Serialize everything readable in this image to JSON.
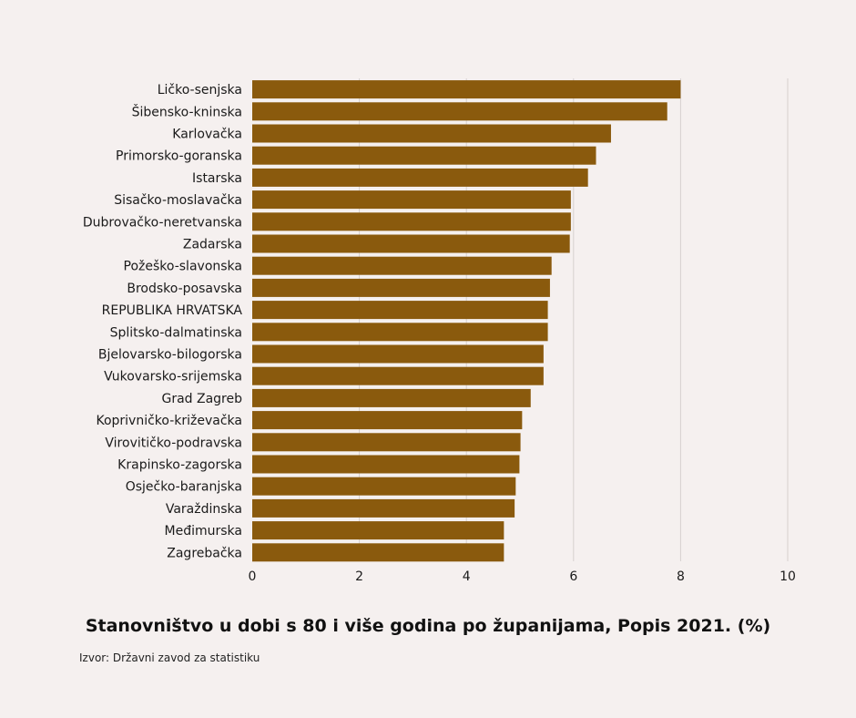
{
  "colors": {
    "background": "#f5f0ef",
    "bar": "#8a5a0d",
    "grid": "#d6d0ce"
  },
  "chart_data": {
    "type": "bar",
    "orientation": "horizontal",
    "title": "Stanovništvo u dobi s 80 i više godina po županijama, Popis 2021. (%)",
    "source": "Izvor: Državni zavod za statistiku",
    "xlabel": "",
    "ylabel": "",
    "xlim": [
      0,
      10
    ],
    "x_ticks": [
      "0",
      "2",
      "4",
      "6",
      "8",
      "10"
    ],
    "grid": "vertical",
    "categories": [
      "Ličko-senjska",
      "Šibensko-kninska",
      "Karlovačka",
      "Primorsko-goranska",
      "Istarska",
      "Sisačko-moslavačka",
      "Dubrovačko-neretvanska",
      "Zadarska",
      "Požeško-slavonska",
      "Brodsko-posavska",
      "REPUBLIKA HRVATSKA",
      "Splitsko-dalmatinska",
      "Bjelovarsko-bilogorska",
      "Vukovarsko-srijemska",
      "Grad Zagreb",
      "Koprivničko-križevačka",
      "Virovitičko-podravska",
      "Krapinsko-zagorska",
      "Osječko-baranjska",
      "Varaždinska",
      "Međimurska",
      "Zagrebačka"
    ],
    "values": [
      8.0,
      7.75,
      6.7,
      6.42,
      6.27,
      5.95,
      5.95,
      5.93,
      5.59,
      5.56,
      5.52,
      5.52,
      5.44,
      5.44,
      5.2,
      5.04,
      5.01,
      4.99,
      4.92,
      4.9,
      4.7,
      4.7
    ]
  }
}
